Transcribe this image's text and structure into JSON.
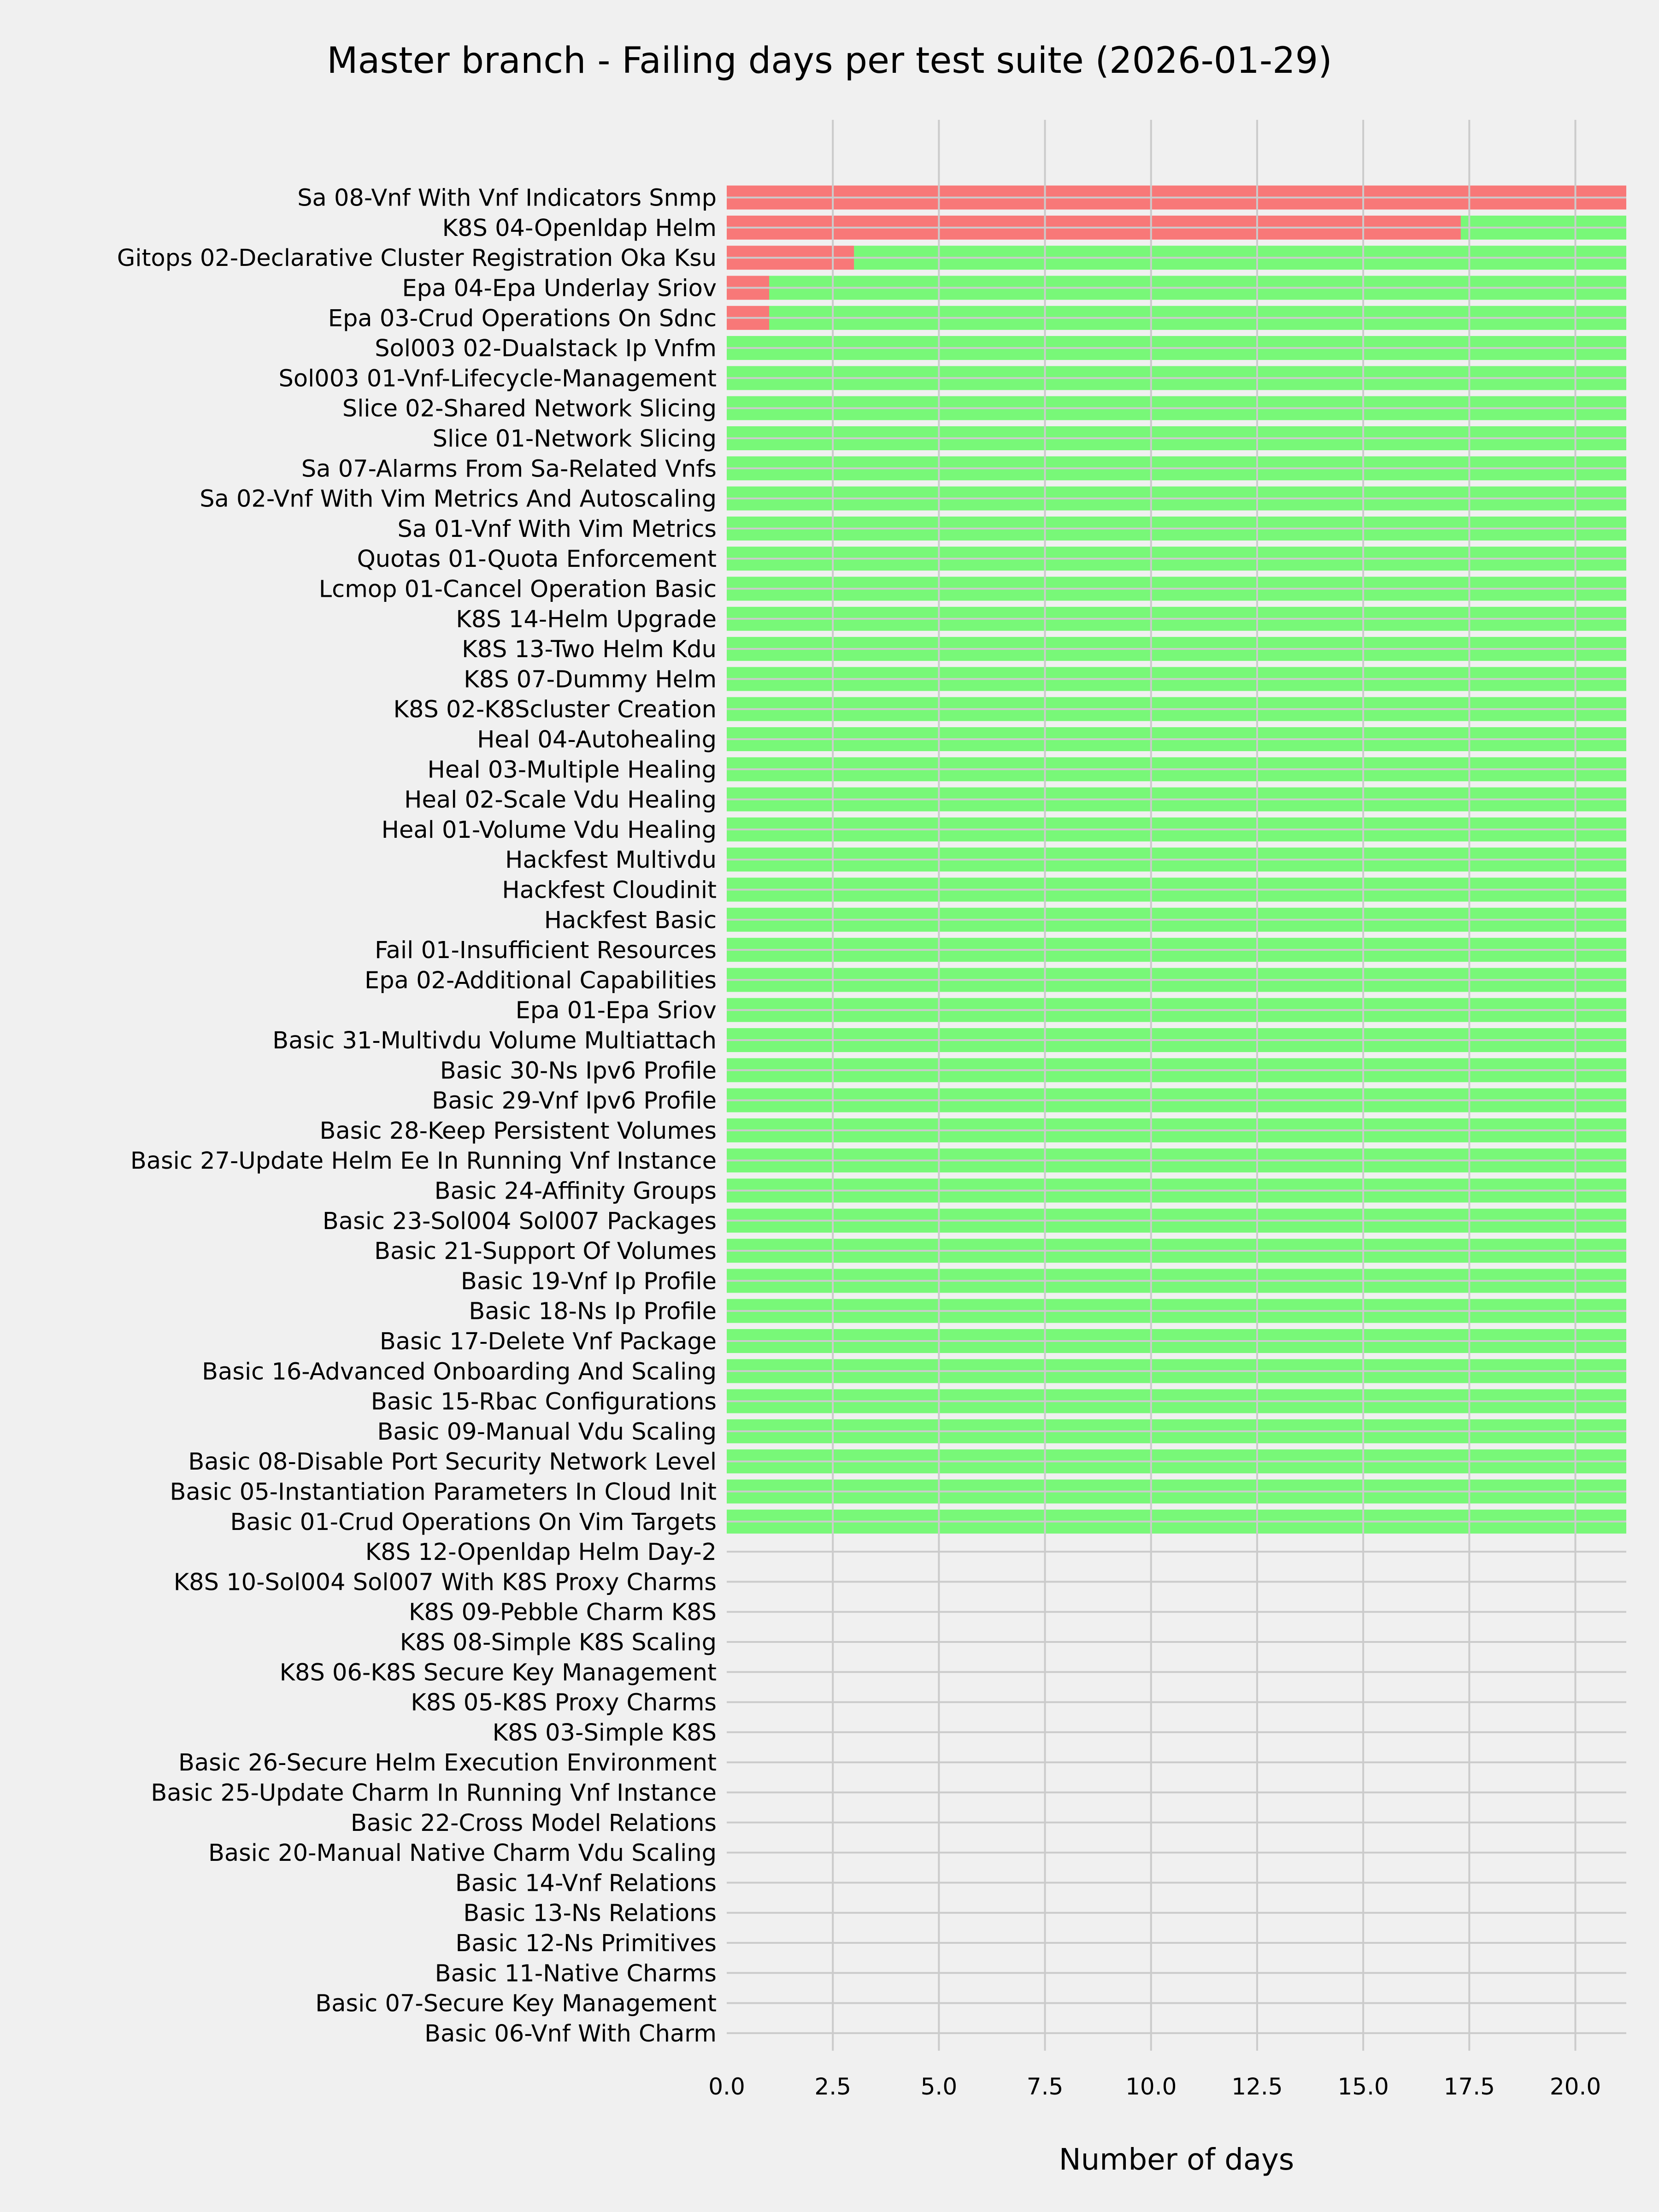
{
  "chart_data": {
    "type": "bar",
    "orientation": "horizontal",
    "stacked": true,
    "title": "Master branch - Failing days per test suite (2026-01-29)",
    "xlabel": "Number of days",
    "ylabel": "",
    "xlim": [
      0,
      21.2
    ],
    "xticks": [
      "0.0",
      "2.5",
      "5.0",
      "7.5",
      "10.0",
      "12.5",
      "15.0",
      "17.5",
      "20.0"
    ],
    "grid": true,
    "colors": {
      "failing": "#ff0000",
      "passing": "#00ff00",
      "background": "#f0f0f0",
      "grid": "#cbcbcb"
    },
    "bar_alpha": 0.5,
    "categories": [
      "Sa 08-Vnf With Vnf Indicators Snmp",
      "K8S 04-Openldap Helm",
      "Gitops 02-Declarative Cluster Registration Oka Ksu",
      "Epa 04-Epa Underlay Sriov",
      "Epa 03-Crud Operations On Sdnc",
      "Sol003 02-Dualstack Ip Vnfm",
      "Sol003 01-Vnf-Lifecycle-Management",
      "Slice 02-Shared Network Slicing",
      "Slice 01-Network Slicing",
      "Sa 07-Alarms From Sa-Related Vnfs",
      "Sa 02-Vnf With Vim Metrics And Autoscaling",
      "Sa 01-Vnf With Vim Metrics",
      "Quotas 01-Quota Enforcement",
      "Lcmop 01-Cancel Operation Basic",
      "K8S 14-Helm Upgrade",
      "K8S 13-Two Helm Kdu",
      "K8S 07-Dummy Helm",
      "K8S 02-K8Scluster Creation",
      "Heal 04-Autohealing",
      "Heal 03-Multiple Healing",
      "Heal 02-Scale Vdu Healing",
      "Heal 01-Volume Vdu Healing",
      "Hackfest Multivdu",
      "Hackfest Cloudinit",
      "Hackfest Basic",
      "Fail 01-Insufficient Resources",
      "Epa 02-Additional Capabilities",
      "Epa 01-Epa Sriov",
      "Basic 31-Multivdu Volume Multiattach",
      "Basic 30-Ns Ipv6 Profile",
      "Basic 29-Vnf Ipv6 Profile",
      "Basic 28-Keep Persistent Volumes",
      "Basic 27-Update Helm Ee In Running Vnf Instance",
      "Basic 24-Affinity Groups",
      "Basic 23-Sol004 Sol007 Packages",
      "Basic 21-Support Of Volumes",
      "Basic 19-Vnf Ip Profile",
      "Basic 18-Ns Ip Profile",
      "Basic 17-Delete Vnf Package",
      "Basic 16-Advanced Onboarding And Scaling",
      "Basic 15-Rbac Configurations",
      "Basic 09-Manual Vdu Scaling",
      "Basic 08-Disable Port Security Network Level",
      "Basic 05-Instantiation Parameters In Cloud Init",
      "Basic 01-Crud Operations On Vim Targets",
      "K8S 12-Openldap Helm Day-2",
      "K8S 10-Sol004 Sol007 With K8S Proxy Charms",
      "K8S 09-Pebble Charm K8S",
      "K8S 08-Simple K8S Scaling",
      "K8S 06-K8S Secure Key Management",
      "K8S 05-K8S Proxy Charms",
      "K8S 03-Simple K8S",
      "Basic 26-Secure Helm Execution Environment",
      "Basic 25-Update Charm In Running Vnf Instance",
      "Basic 22-Cross Model Relations",
      "Basic 20-Manual Native Charm Vdu Scaling",
      "Basic 14-Vnf Relations",
      "Basic 13-Ns Relations",
      "Basic 12-Ns Primitives",
      "Basic 11-Native Charms",
      "Basic 07-Secure Key Management",
      "Basic 06-Vnf With Charm"
    ],
    "series": [
      {
        "key": "failing",
        "color": "#ff0000",
        "values": [
          21.2,
          17.3,
          3,
          1,
          1,
          0,
          0,
          0,
          0,
          0,
          0,
          0,
          0,
          0,
          0,
          0,
          0,
          0,
          0,
          0,
          0,
          0,
          0,
          0,
          0,
          0,
          0,
          0,
          0,
          0,
          0,
          0,
          0,
          0,
          0,
          0,
          0,
          0,
          0,
          0,
          0,
          0,
          0,
          0,
          0,
          0,
          0,
          0,
          0,
          0,
          0,
          0,
          0,
          0,
          0,
          0,
          0,
          0,
          0,
          0,
          0,
          0
        ]
      },
      {
        "key": "passing",
        "color": "#00ff00",
        "values": [
          0,
          3.9,
          18.2,
          20.2,
          20.2,
          21.2,
          21.2,
          21.2,
          21.2,
          21.2,
          21.2,
          21.2,
          21.2,
          21.2,
          21.2,
          21.2,
          21.2,
          21.2,
          21.2,
          21.2,
          21.2,
          21.2,
          21.2,
          21.2,
          21.2,
          21.2,
          21.2,
          21.2,
          21.2,
          21.2,
          21.2,
          21.2,
          21.2,
          21.2,
          21.2,
          21.2,
          21.2,
          21.2,
          21.2,
          21.2,
          21.2,
          21.2,
          21.2,
          21.2,
          21.2,
          0,
          0,
          0,
          0,
          0,
          0,
          0,
          0,
          0,
          0,
          0,
          0,
          0,
          0,
          0,
          0,
          0
        ]
      }
    ]
  }
}
